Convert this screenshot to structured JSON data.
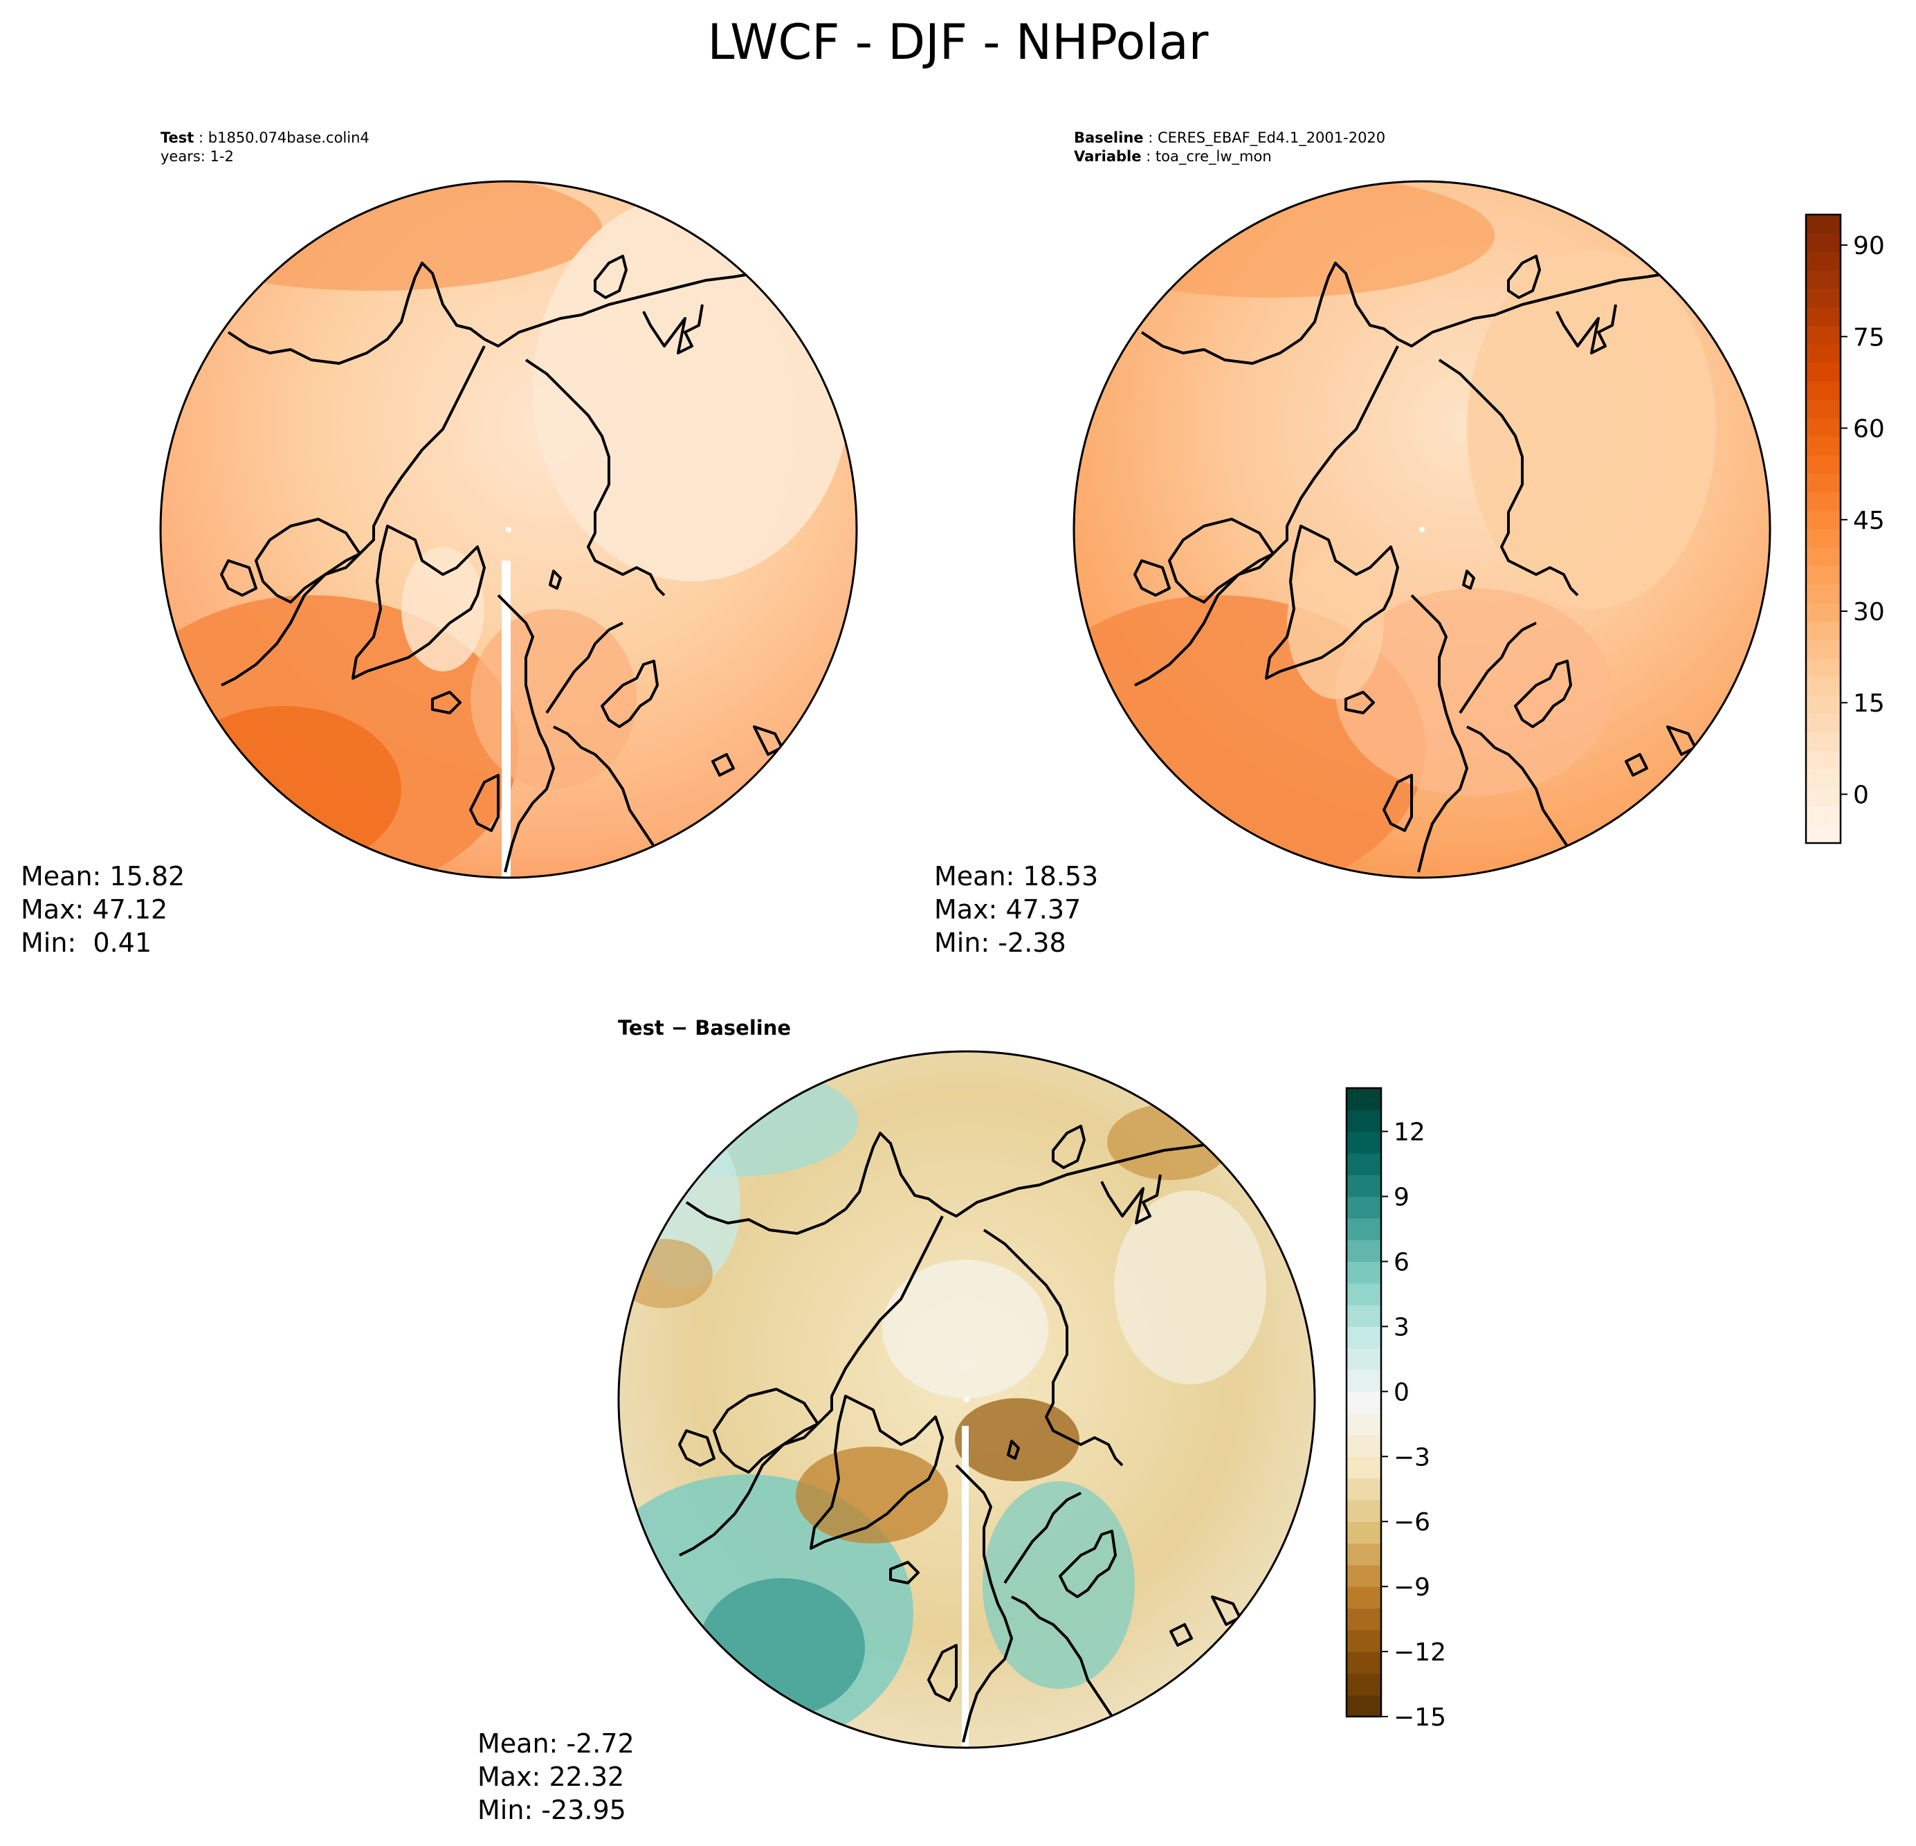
{
  "title": "LWCF - DJF - NHPolar",
  "panels": {
    "test": {
      "line1_key": "Test",
      "line1_val": "b1850.074base.colin4",
      "line2": "years: 1-2",
      "mean": "Mean: 15.82",
      "max": "Max: 47.12",
      "min": "Min:  0.41"
    },
    "baseline": {
      "line1_key": "Baseline",
      "line1_val": "CERES_EBAF_Ed4.1_2001-2020",
      "line2_key": "Variable",
      "line2_val": "toa_cre_lw_mon",
      "mean": "Mean: 18.53",
      "max": "Max: 47.37",
      "min": "Min: -2.38"
    },
    "diff": {
      "title": "Test − Baseline",
      "mean": "Mean: -2.72",
      "max": "Max: 22.32",
      "min": "Min: -23.95"
    }
  },
  "colorbars": {
    "main": {
      "range": [
        -8,
        95
      ],
      "ticks": [
        "0",
        "15",
        "30",
        "45",
        "60",
        "75",
        "90"
      ],
      "tick_values": [
        0,
        15,
        30,
        45,
        60,
        75,
        90
      ],
      "colors": [
        "#fff5eb",
        "#fee6ce",
        "#fdd0a2",
        "#fdae6b",
        "#fd8d3c",
        "#f16913",
        "#d94801",
        "#a63603",
        "#7f2704"
      ]
    },
    "diff": {
      "range": [
        -15,
        14
      ],
      "ticks": [
        "12",
        "9",
        "6",
        "3",
        "0",
        "−3",
        "−6",
        "−9",
        "−12",
        "−15"
      ],
      "tick_values": [
        12,
        9,
        6,
        3,
        0,
        -3,
        -6,
        -9,
        -12,
        -15
      ],
      "colors": [
        "#543005",
        "#8c510a",
        "#bf812d",
        "#dfc27d",
        "#f6e8c3",
        "#f5f5f5",
        "#c7eae5",
        "#80cdc1",
        "#35978f",
        "#01665e",
        "#003c30"
      ]
    }
  }
}
